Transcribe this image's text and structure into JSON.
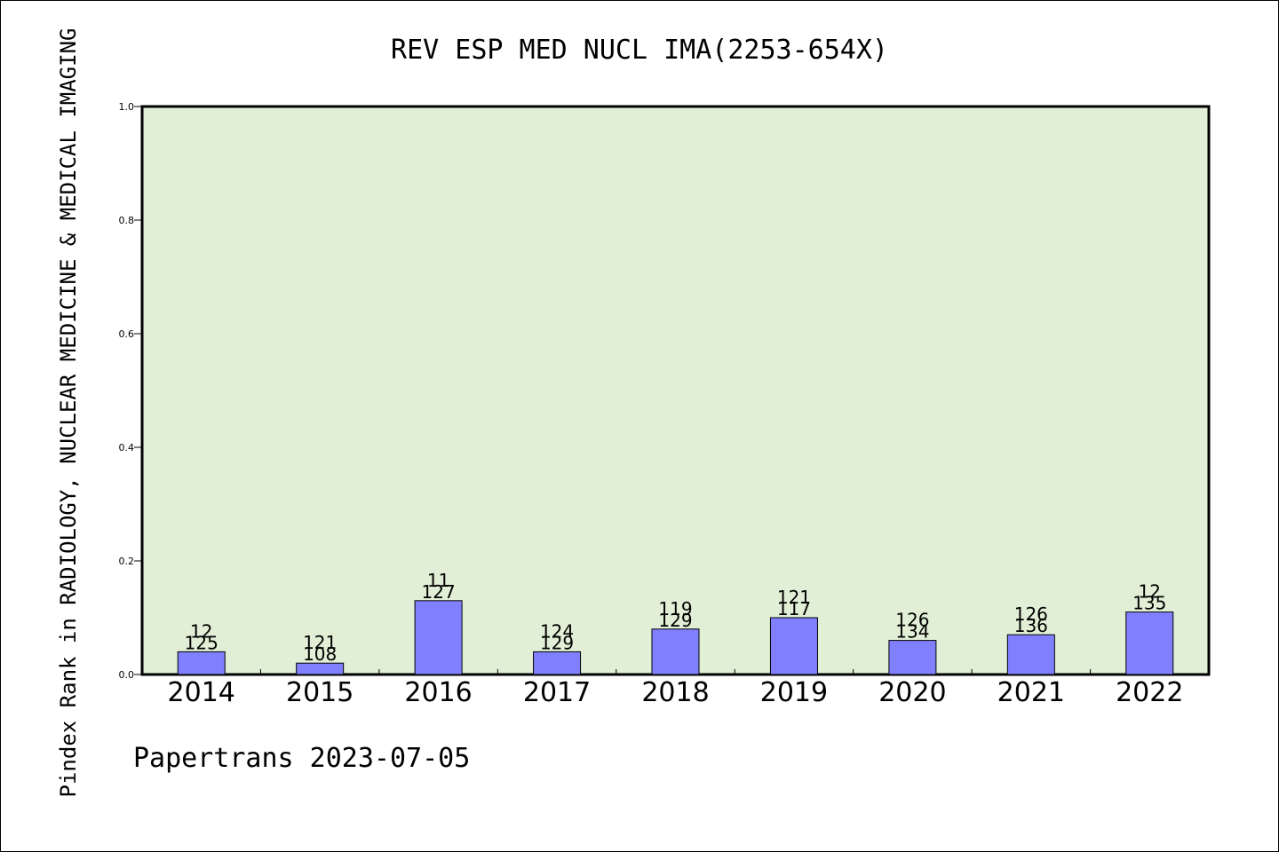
{
  "chart_data": {
    "type": "bar",
    "title": "REV ESP MED NUCL IMA(2253-654X)",
    "xlabel": "",
    "ylabel": "Pindex Rank in RADIOLOGY, NUCLEAR MEDICINE & MEDICAL IMAGING",
    "categories": [
      "2014",
      "2015",
      "2016",
      "2017",
      "2018",
      "2019",
      "2020",
      "2021",
      "2022"
    ],
    "values": [
      0.04,
      0.02,
      0.13,
      0.04,
      0.08,
      0.1,
      0.06,
      0.07,
      0.11
    ],
    "label_top": [
      "12",
      "121",
      "11",
      "124",
      "119",
      "121",
      "126",
      "126",
      "12"
    ],
    "label_bottom": [
      "125",
      "108",
      "127",
      "129",
      "129",
      "117",
      "134",
      "136",
      "135"
    ],
    "ylim": [
      0,
      1.0
    ],
    "yticks": [
      "0.0",
      "0.2",
      "0.4",
      "0.6",
      "0.8",
      "1.0"
    ],
    "grid": false,
    "colors": {
      "plot_background": "#e1efd6",
      "bar_fill": "#8080ff",
      "bar_stroke": "#000000"
    }
  },
  "footer": {
    "credit": "Papertrans 2023-07-05"
  }
}
